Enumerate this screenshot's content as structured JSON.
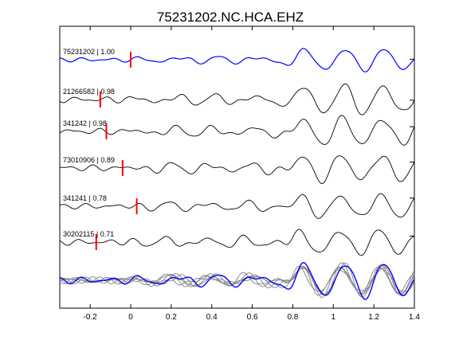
{
  "chart_data": {
    "type": "line",
    "title": "75231202.NC.HCA.EHZ",
    "xlabel": "",
    "ylabel": "",
    "xlim": [
      -0.35,
      1.4
    ],
    "xticks": [
      -0.2,
      0,
      0.2,
      0.4,
      0.6,
      0.8,
      1,
      1.2,
      1.4
    ],
    "xtick_labels": [
      "-0.2",
      "0",
      "0.2",
      "0.4",
      "0.6",
      "0.8",
      "1",
      "1.2",
      "1.4"
    ],
    "grid": false,
    "legend": "none",
    "colors": {
      "reference_trace": "#0000ff",
      "other_trace": "#000000",
      "stack_trace": "#808080",
      "pick_marker": "#ff0000"
    },
    "series": [
      {
        "name": "75231202 | 1.00",
        "pick_time": 0.0
      },
      {
        "name": "21266582 | 0.98",
        "pick_time": -0.15
      },
      {
        "name": "341242 | 0.98",
        "pick_time": -0.12
      },
      {
        "name": "73010906 | 0.89",
        "pick_time": -0.04
      },
      {
        "name": "341241 | 0.78",
        "pick_time": 0.03
      },
      {
        "name": "30202115 | 0.71",
        "pick_time": -0.17
      }
    ]
  }
}
